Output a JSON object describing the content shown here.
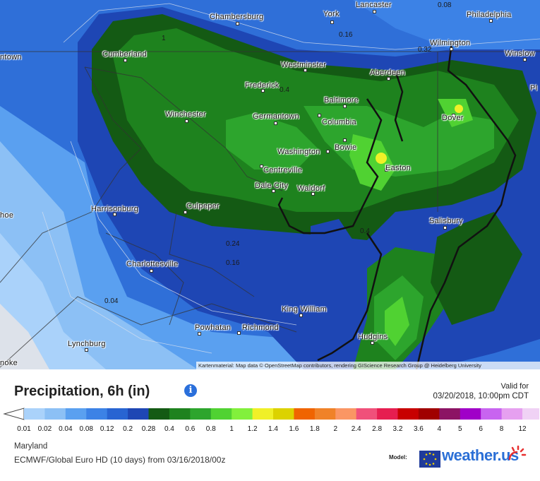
{
  "map": {
    "attribution": "Kartenmaterial: Map data © OpenStreetMap contributors, rendering GIScience Research Group @ Heidelberg University",
    "cities": [
      {
        "name": "Lancaster"
      },
      {
        "name": "York"
      },
      {
        "name": "Chambersburg"
      },
      {
        "name": "Philadelphia"
      },
      {
        "name": "Cumberland"
      },
      {
        "name": "Wilmington"
      },
      {
        "name": "Winslow"
      },
      {
        "name": "Westminster"
      },
      {
        "name": "Aberdeen"
      },
      {
        "name": "Frederick"
      },
      {
        "name": "Baltimore"
      },
      {
        "name": "Winchester"
      },
      {
        "name": "Germantown"
      },
      {
        "name": "Columbia"
      },
      {
        "name": "Dover"
      },
      {
        "name": "Washington"
      },
      {
        "name": "Bowie"
      },
      {
        "name": "Centreville"
      },
      {
        "name": "Easton"
      },
      {
        "name": "Dale City"
      },
      {
        "name": "Waldorf"
      },
      {
        "name": "Culpeper"
      },
      {
        "name": "Harrisonburg"
      },
      {
        "name": "Salisbury"
      },
      {
        "name": "Charlottesville"
      },
      {
        "name": "King William"
      },
      {
        "name": "Powhatan"
      },
      {
        "name": "Richmond"
      },
      {
        "name": "Hudgins"
      },
      {
        "name": "Lynchburg"
      },
      {
        "name": "ntown"
      },
      {
        "name": "hoe"
      },
      {
        "name": "noke"
      },
      {
        "name": "Pl"
      }
    ],
    "isolines": [
      "0.08",
      "0.16",
      "0.32",
      "0.4",
      "0.4",
      "0.24",
      "0.16",
      "0.04",
      "1"
    ]
  },
  "header": {
    "title": "Precipitation, 6h (in)",
    "info_icon": "info-icon",
    "valid_label": "Valid for",
    "valid_time": "03/20/2018, 10:00pm CDT"
  },
  "legend": {
    "ticks": [
      "0.01",
      "0.02",
      "0.04",
      "0.08",
      "0.12",
      "0.2",
      "0.28",
      "0.4",
      "0.6",
      "0.8",
      "1",
      "1.2",
      "1.4",
      "1.6",
      "1.8",
      "2",
      "2.4",
      "2.8",
      "3.2",
      "3.6",
      "4",
      "5",
      "6",
      "8",
      "12"
    ],
    "colors": [
      "#aad2fa",
      "#8cc0f5",
      "#5aa0f0",
      "#3c82e6",
      "#2864d2",
      "#1e46b4",
      "#145a14",
      "#1e821e",
      "#2da52d",
      "#50d232",
      "#82f03c",
      "#f0f028",
      "#dcd200",
      "#f06400",
      "#f08228",
      "#fa9664",
      "#f0507a",
      "#e61e50",
      "#c80000",
      "#a00000",
      "#8c1464",
      "#a000c8",
      "#c864f0",
      "#e6a0f0",
      "#f0d2f5",
      "#c8c8c8"
    ]
  },
  "footer": {
    "region": "Maryland",
    "model": "ECMWF/Global Euro HD (10 days) from 03/16/2018/00z",
    "model_label": "Model:",
    "brand": "weather.us"
  }
}
